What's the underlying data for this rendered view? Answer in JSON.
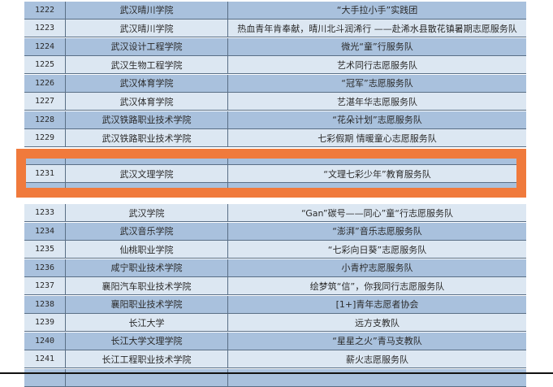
{
  "highlight_color": "#f07a3c",
  "rows": [
    {
      "no": "1222",
      "school": "武汉晴川学院",
      "team": "“大手拉小手”实践团",
      "shade": "dark"
    },
    {
      "no": "1223",
      "school": "武汉晴川学院",
      "team": "热血青年肯奉献，晴川北斗润浠行 ——赴浠水县散花镇暑期志愿服务队",
      "shade": "light"
    },
    {
      "no": "1224",
      "school": "武汉设计工程学院",
      "team": "微光“童”行服务队",
      "shade": "dark"
    },
    {
      "no": "1225",
      "school": "武汉生物工程学院",
      "team": "艺术同行志愿服务队",
      "shade": "light"
    },
    {
      "no": "1226",
      "school": "武汉体育学院",
      "team": "“冠军”志愿服务队",
      "shade": "dark"
    },
    {
      "no": "1227",
      "school": "武汉体育学院",
      "team": "艺湛年华志愿服务队",
      "shade": "light"
    },
    {
      "no": "1228",
      "school": "武汉铁路职业技术学院",
      "team": "“花朵计划”志愿服务队",
      "shade": "dark"
    },
    {
      "no": "1229",
      "school": "武汉铁路职业技术学院",
      "team": "七彩假期 情暖童心志愿服务队",
      "shade": "light"
    },
    {
      "no": "",
      "school": "",
      "team": "",
      "shade": "dark"
    },
    {
      "no": "1231",
      "school": "武汉文理学院",
      "team": "“文理七彩少年”教育服务队",
      "shade": "light"
    },
    {
      "no": "",
      "school": "",
      "team": "",
      "shade": "dark"
    },
    {
      "no": "1233",
      "school": "武汉学院",
      "team": "“Gan”碳号——同心”童“行志愿服务队",
      "shade": "light"
    },
    {
      "no": "1234",
      "school": "武汉音乐学院",
      "team": "“澎湃”音乐志愿服务队",
      "shade": "dark"
    },
    {
      "no": "1235",
      "school": "仙桃职业学院",
      "team": "“七彩向日葵”志愿服务队",
      "shade": "light"
    },
    {
      "no": "1236",
      "school": "咸宁职业技术学院",
      "team": "小青柠志愿服务队",
      "shade": "dark"
    },
    {
      "no": "1237",
      "school": "襄阳汽车职业技术学院",
      "team": "绘梦筑“信”，你我同行志愿服务队",
      "shade": "light"
    },
    {
      "no": "1238",
      "school": "襄阳职业技术学院",
      "team": "[1+]青年志愿者协会",
      "shade": "dark"
    },
    {
      "no": "1239",
      "school": "长江大学",
      "team": "远方支教队",
      "shade": "light"
    },
    {
      "no": "1240",
      "school": "长江大学文理学院",
      "team": "“星星之火”青马支教队",
      "shade": "dark"
    },
    {
      "no": "1241",
      "school": "长江工程职业技术学院",
      "team": "薪火志愿服务队",
      "shade": "light"
    },
    {
      "no": "",
      "school": "",
      "team": "",
      "shade": "dark"
    }
  ]
}
